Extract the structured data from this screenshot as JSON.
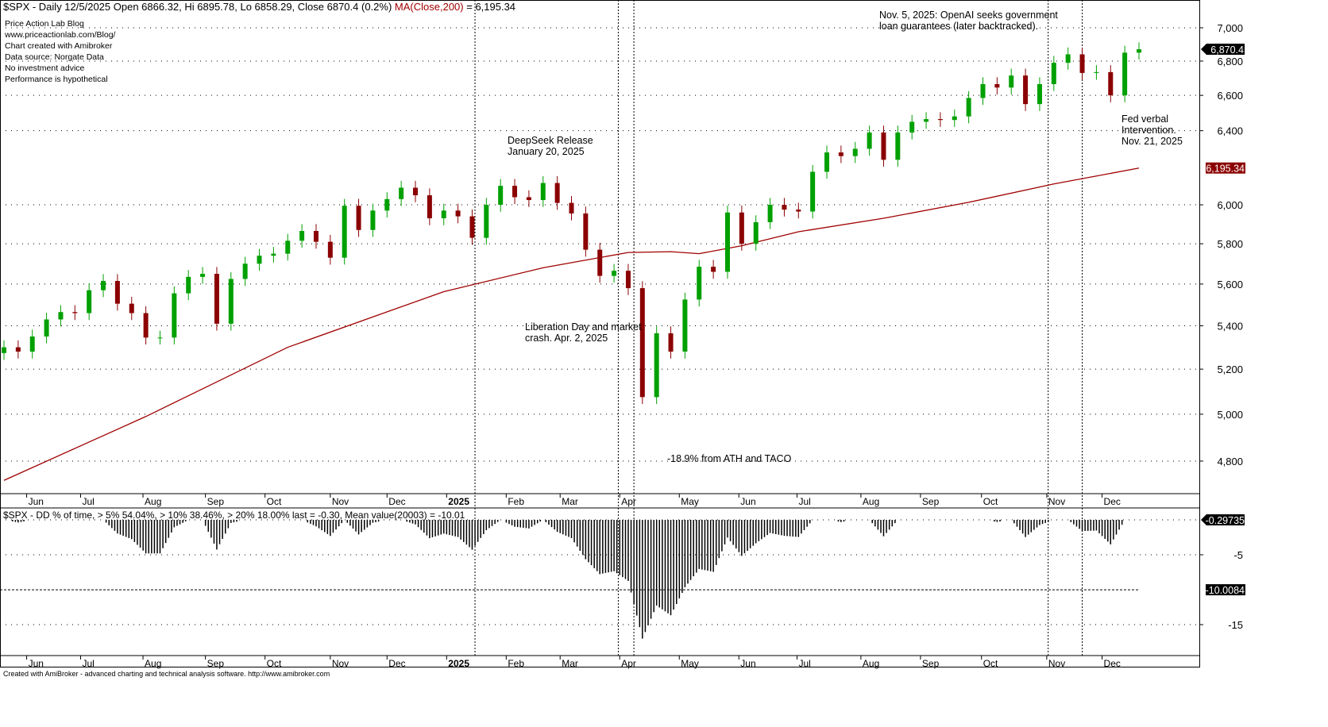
{
  "chart_data": {
    "type": "candlestick",
    "title": "$SPX - Daily 12/5/2025 Open 6866.32, Hi 6895.78, Lo 6858.29, Close 6870.4 (0.2%)",
    "ma_label": "MA(Close,200)",
    "ma_value": "= 6,195.34",
    "info_lines": [
      "Price Action Lab Blog",
      "www.priceactionlab.com/Blog/",
      "Chart created with Amibroker",
      "Data source: Norgate Data",
      "No investment advice",
      "Performance is hypothetical"
    ],
    "y_scale": "log",
    "ylim": [
      4700,
      7150
    ],
    "y_ticks": [
      7000,
      6800,
      6600,
      6400,
      6000,
      5800,
      5600,
      5400,
      5200,
      5000,
      4800
    ],
    "y_tick_labels": [
      "7,000",
      "6,800",
      "6,600",
      "6,400",
      "6,000",
      "5,800",
      "5,600",
      "5,400",
      "5,200",
      "5,000",
      "4,800"
    ],
    "last_price_label": "6,870.4",
    "ma_last_label": "6,195.34",
    "month_labels": [
      "Jun",
      "Jul",
      "Aug",
      "Sep",
      "Oct",
      "Nov",
      "Dec",
      "2025",
      "Feb",
      "Mar",
      "Apr",
      "May",
      "Jun",
      "Jul",
      "Aug",
      "Sep",
      "Oct",
      "Nov",
      "Dec"
    ],
    "month_week_index": [
      1.6,
      5.4,
      9.8,
      14.2,
      18.4,
      23,
      27,
      31.2,
      35.4,
      39.2,
      43.4,
      47.6,
      51.8,
      55.9,
      60.4,
      64.6,
      68.9,
      73.5,
      77.4
    ],
    "weekly_close": [
      5300,
      5280,
      5350,
      5430,
      5465,
      5460,
      5570,
      5615,
      5505,
      5460,
      5345,
      5345,
      5555,
      5635,
      5650,
      5410,
      5625,
      5700,
      5740,
      5750,
      5815,
      5865,
      5810,
      5730,
      5995,
      5870,
      5970,
      6030,
      6090,
      6050,
      5930,
      5970,
      5940,
      5830,
      6000,
      6100,
      6040,
      6025,
      6115,
      6010,
      5955,
      5770,
      5640,
      5665,
      5580,
      5075,
      5365,
      5280,
      5525,
      5685,
      5660,
      5960,
      5800,
      5910,
      6000,
      5975,
      5965,
      6175,
      6280,
      6260,
      6300,
      6390,
      6240,
      6390,
      6450,
      6465,
      6460,
      6480,
      6585,
      6665,
      6645,
      6715,
      6550,
      6665,
      6790,
      6840,
      6730,
      6735,
      6600,
      6850,
      6870.4
    ],
    "ma200": [
      [
        0,
        4720
      ],
      [
        10,
        4990
      ],
      [
        20,
        5300
      ],
      [
        31,
        5563
      ],
      [
        38,
        5680
      ],
      [
        44,
        5756
      ],
      [
        47,
        5760
      ],
      [
        49,
        5750
      ],
      [
        52,
        5790
      ],
      [
        56,
        5861
      ],
      [
        62,
        5930
      ],
      [
        68,
        6013
      ],
      [
        74,
        6110
      ],
      [
        80,
        6195
      ]
    ],
    "event_week_index": [
      33.2,
      43.3,
      44.4,
      73.6,
      76
    ],
    "annotations": {
      "deepseek": [
        "DeepSeek Release",
        "January 20, 2025"
      ],
      "liberation": [
        "Liberation Day and market",
        "crash. Apr. 2, 2025"
      ],
      "taco": "-18.9% from ATH and TACO",
      "openai": [
        "Nov. 5, 2025: OpenAI seeks government",
        "loan guarantees (later backtracked)."
      ],
      "fed": [
        "Fed verbal",
        "Intervention.",
        "Nov. 21, 2025"
      ]
    },
    "dd_pane": {
      "title": "$SPX - DD % of time,  > 5% 54.04%, > 10% 38.46%, > 20% 18.00%  last  = -0.30,   Mean value(20003) = -10.01",
      "y_ticks": [
        -5,
        -15
      ],
      "y_tick_labels": [
        "-5",
        "-15"
      ],
      "last_label": "-0.29735",
      "mean_label": "-10.0084",
      "mean": -10.0084
    },
    "colors": {
      "up": "#00a000",
      "down": "#8b0000",
      "ma": "#a00000"
    }
  },
  "footer": "Created with AmiBroker - advanced charting and technical analysis software. http://www.amibroker.com"
}
